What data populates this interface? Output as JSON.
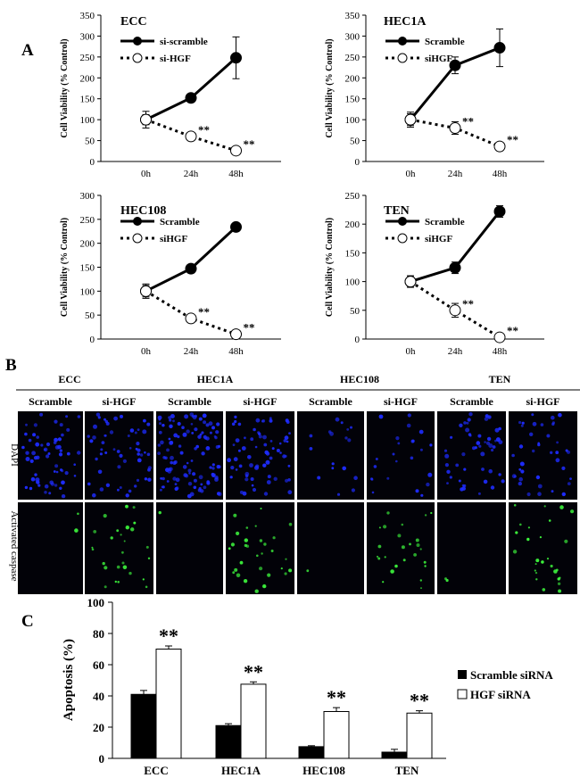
{
  "panels": {
    "a": "A",
    "b": "B",
    "c": "C"
  },
  "chart_data": [
    {
      "type": "line",
      "title": "ECC",
      "x": [
        "0h",
        "24h",
        "48h"
      ],
      "ylabel": "Cell Viability (% Control)",
      "ylim": [
        0,
        350
      ],
      "yticks": [
        0,
        50,
        100,
        150,
        200,
        250,
        300,
        350
      ],
      "series": [
        {
          "name": "si-scramble",
          "values": [
            100,
            152,
            248
          ],
          "errors": [
            20,
            10,
            50
          ],
          "stars": [
            "",
            "",
            ""
          ]
        },
        {
          "name": "si-HGF",
          "values": [
            100,
            60,
            26
          ],
          "errors": [
            12,
            6,
            6
          ],
          "stars": [
            "",
            "**",
            "**"
          ]
        }
      ]
    },
    {
      "type": "line",
      "title": "HEC1A",
      "x": [
        "0h",
        "24h",
        "48h"
      ],
      "ylabel": "Cell Viability (% Control)",
      "ylim": [
        0,
        350
      ],
      "yticks": [
        0,
        50,
        100,
        150,
        200,
        250,
        300,
        350
      ],
      "series": [
        {
          "name": "Scramble",
          "values": [
            100,
            230,
            272
          ],
          "errors": [
            18,
            20,
            45
          ],
          "stars": [
            "",
            "",
            ""
          ]
        },
        {
          "name": "siHGF",
          "values": [
            100,
            80,
            36
          ],
          "errors": [
            14,
            15,
            8
          ],
          "stars": [
            "",
            "**",
            "**"
          ]
        }
      ]
    },
    {
      "type": "line",
      "title": "HEC108",
      "x": [
        "0h",
        "24h",
        "48h"
      ],
      "ylabel": "Cell Viability (% Control)",
      "ylim": [
        0,
        300
      ],
      "yticks": [
        0,
        50,
        100,
        150,
        200,
        250,
        300
      ],
      "series": [
        {
          "name": "Scramble",
          "values": [
            100,
            147,
            234
          ],
          "errors": [
            15,
            8,
            6
          ],
          "stars": [
            "",
            "",
            ""
          ]
        },
        {
          "name": "siHGF",
          "values": [
            100,
            43,
            10
          ],
          "errors": [
            12,
            6,
            4
          ],
          "stars": [
            "",
            "**",
            "**"
          ]
        }
      ]
    },
    {
      "type": "line",
      "title": "TEN",
      "x": [
        "0h",
        "24h",
        "48h"
      ],
      "ylabel": "Cell Viability (% Control)",
      "ylim": [
        0,
        250
      ],
      "yticks": [
        0,
        50,
        100,
        150,
        200,
        250
      ],
      "series": [
        {
          "name": "Scramble",
          "values": [
            100,
            124,
            222
          ],
          "errors": [
            10,
            10,
            10
          ],
          "stars": [
            "",
            "",
            ""
          ]
        },
        {
          "name": "siHGF",
          "values": [
            100,
            50,
            3
          ],
          "errors": [
            10,
            12,
            4
          ],
          "stars": [
            "",
            "**",
            "**"
          ]
        }
      ]
    },
    {
      "type": "bar",
      "title": "",
      "categories": [
        "ECC",
        "HEC1A",
        "HEC108",
        "TEN"
      ],
      "ylabel": "Apoptosis (%)",
      "ylim": [
        0,
        100
      ],
      "yticks": [
        0,
        20,
        40,
        60,
        80,
        100
      ],
      "series": [
        {
          "name": "Scramble siRNA",
          "values": [
            41,
            21,
            7.5,
            4
          ],
          "errors": [
            2.5,
            1.2,
            0.6,
            1.8
          ]
        },
        {
          "name": "HGF siRNA",
          "values": [
            70,
            47.5,
            30,
            29
          ],
          "errors": [
            2.0,
            1.5,
            2.5,
            1.5
          ]
        }
      ],
      "stars": [
        "**",
        "**",
        "**",
        "**"
      ]
    }
  ],
  "micro": {
    "groups": [
      "ECC",
      "HEC1A",
      "HEC108",
      "TEN"
    ],
    "conditions": [
      "Scramble",
      "si-HGF",
      "Scramble",
      "si-HGF",
      "Scramble",
      "si-HGF",
      "Scramble",
      "si-HGF"
    ],
    "rows": [
      "DAPI",
      "Activated  caspase"
    ],
    "dapi_density": [
      0.55,
      0.5,
      1.0,
      0.6,
      0.15,
      0.22,
      0.45,
      0.35
    ],
    "caspase_density": [
      0.05,
      0.6,
      0.03,
      0.7,
      0.02,
      0.55,
      0.05,
      0.6
    ],
    "colors": {
      "dapi": "#1e2cff",
      "caspase": "#3cf23c",
      "background": "#020208"
    }
  }
}
